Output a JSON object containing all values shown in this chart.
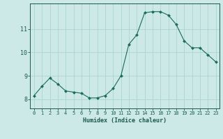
{
  "x": [
    0,
    1,
    2,
    3,
    4,
    5,
    6,
    7,
    8,
    9,
    10,
    11,
    12,
    13,
    14,
    15,
    16,
    17,
    18,
    19,
    20,
    21,
    22,
    23
  ],
  "y": [
    8.15,
    8.55,
    8.9,
    8.65,
    8.35,
    8.3,
    8.25,
    8.05,
    8.05,
    8.15,
    8.45,
    9.0,
    10.35,
    10.75,
    11.7,
    11.75,
    11.75,
    11.6,
    11.2,
    10.5,
    10.2,
    10.2,
    9.9,
    9.6
  ],
  "bg_color": "#cce9e7",
  "line_color": "#1a6b5a",
  "marker_color": "#1a6b5a",
  "grid_color": "#aad4d0",
  "axis_label_color": "#1a5a4a",
  "tick_color": "#1a5a4a",
  "xlabel": "Humidex (Indice chaleur)",
  "ylim": [
    7.6,
    12.1
  ],
  "xlim": [
    -0.5,
    23.5
  ],
  "yticks": [
    8,
    9,
    10,
    11
  ],
  "xticks": [
    0,
    1,
    2,
    3,
    4,
    5,
    6,
    7,
    8,
    9,
    10,
    11,
    12,
    13,
    14,
    15,
    16,
    17,
    18,
    19,
    20,
    21,
    22,
    23
  ]
}
